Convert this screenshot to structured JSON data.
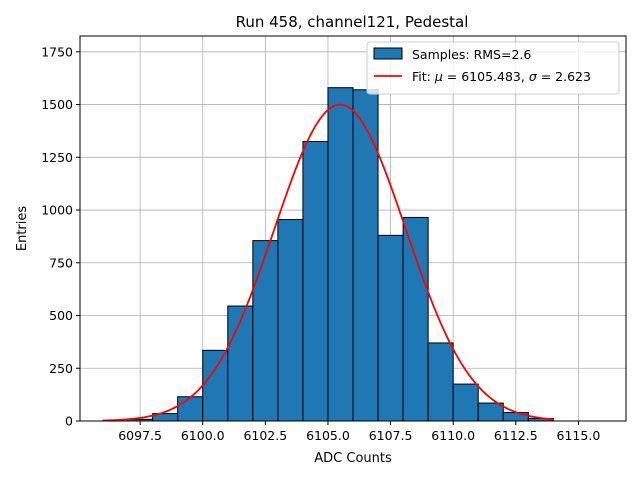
{
  "chart_data": {
    "type": "bar",
    "title": "Run 458, channel121, Pedestal",
    "xlabel": "ADC Counts",
    "ylabel": "Entries",
    "xlim": [
      6095.1,
      6116.9
    ],
    "ylim": [
      0,
      1825
    ],
    "xticks": [
      "6097.5",
      "6100.0",
      "6102.5",
      "6105.0",
      "6107.5",
      "6110.0",
      "6112.5",
      "6115.0"
    ],
    "xtick_values": [
      6097.5,
      6100.0,
      6102.5,
      6105.0,
      6107.5,
      6110.0,
      6112.5,
      6115.0
    ],
    "yticks": [
      "0",
      "250",
      "500",
      "750",
      "1000",
      "1250",
      "1500",
      "1750"
    ],
    "ytick_values": [
      0,
      250,
      500,
      750,
      1000,
      1250,
      1500,
      1750
    ],
    "grid": true,
    "legend_position": "top-right",
    "bar_color": "#1f77b4",
    "fit_color": "#ff0000",
    "histogram": {
      "name": "Samples: RMS=2.6",
      "bin_edges": [
        6096,
        6097,
        6098,
        6099,
        6100,
        6101,
        6102,
        6103,
        6104,
        6105,
        6106,
        6107,
        6108,
        6109,
        6110,
        6111,
        6112,
        6113,
        6114,
        6115,
        6116
      ],
      "counts": [
        0,
        8,
        35,
        115,
        335,
        545,
        855,
        955,
        1325,
        1580,
        1570,
        880,
        965,
        370,
        175,
        85,
        40,
        12,
        0,
        0
      ]
    },
    "fit": {
      "name_prefix": "Fit: ",
      "mu_symbol": "μ",
      "mu_value": " = 6105.483, ",
      "sigma_symbol": "σ",
      "sigma_value": " = 2.623",
      "mu": 6105.483,
      "sigma": 2.623,
      "amplitude": 1500,
      "x_range": [
        6096,
        6114
      ]
    }
  }
}
